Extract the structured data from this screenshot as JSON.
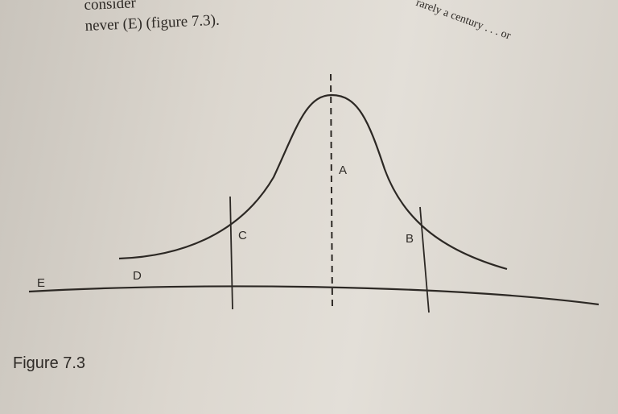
{
  "page_text": {
    "line1": "consider",
    "line2": "never (E) (figure 7.3).",
    "right_fragment": "rarely a century . . . or"
  },
  "figure": {
    "caption": "Figure 7.3",
    "labels": {
      "a": "A",
      "b": "B",
      "c": "C",
      "d": "D",
      "e": "E"
    }
  }
}
